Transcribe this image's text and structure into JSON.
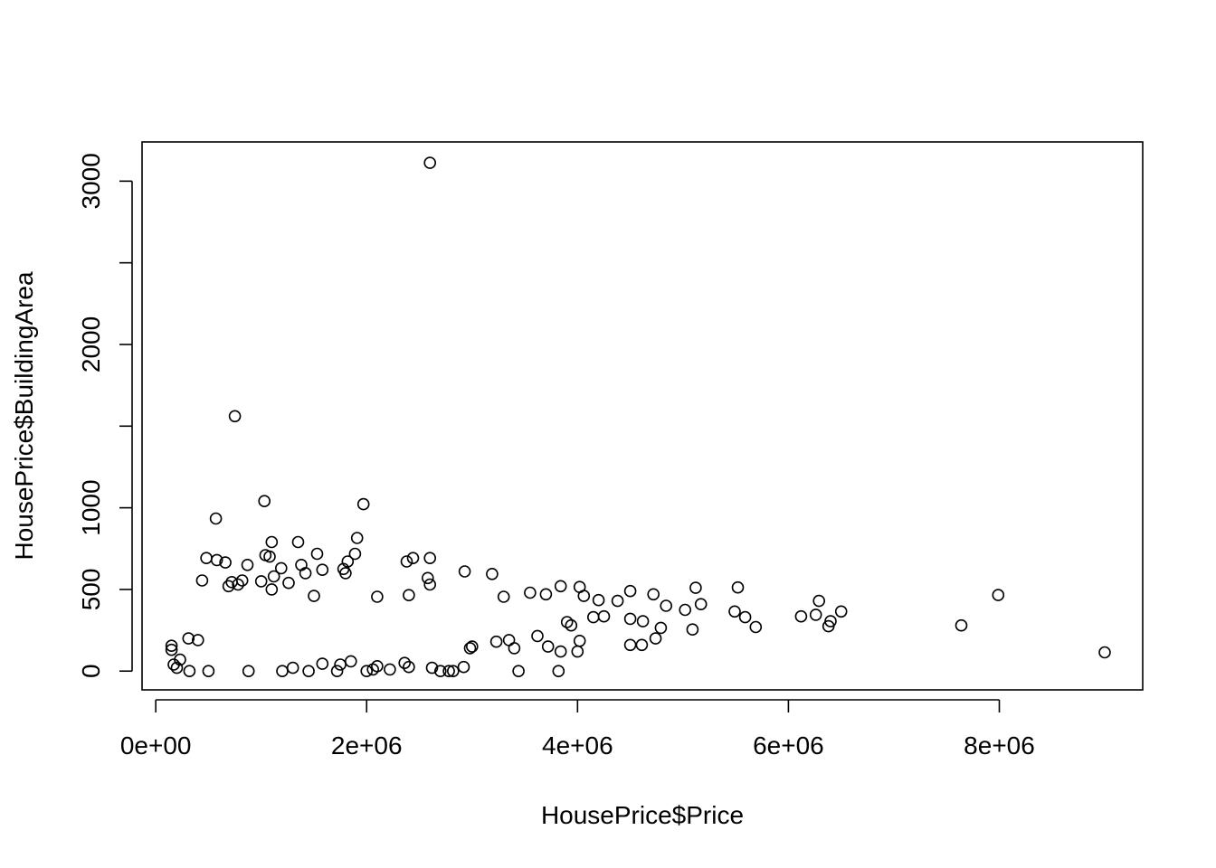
{
  "chart_data": {
    "type": "scatter",
    "title": "",
    "xlabel": "HousePrice$Price",
    "ylabel": "HousePrice$BuildingArea",
    "xlim": [
      -130000,
      9360000
    ],
    "ylim": [
      -115,
      3240
    ],
    "grid": false,
    "legend": "none",
    "x_ticks": [
      {
        "value": 0,
        "label": "0e+00"
      },
      {
        "value": 2000000,
        "label": "2e+06"
      },
      {
        "value": 4000000,
        "label": "4e+06"
      },
      {
        "value": 6000000,
        "label": "6e+06"
      },
      {
        "value": 8000000,
        "label": "8e+06"
      }
    ],
    "y_ticks": [
      {
        "value": 0,
        "label": "0"
      },
      {
        "value": 500,
        "label": "500"
      },
      {
        "value": 1000,
        "label": "1000"
      },
      {
        "value": 1500,
        "label": ""
      },
      {
        "value": 2000,
        "label": "2000"
      },
      {
        "value": 2500,
        "label": ""
      },
      {
        "value": 3000,
        "label": "3000"
      }
    ],
    "point_color": "#000000",
    "series": [
      {
        "points": [
          [
            2600000,
            3112
          ],
          [
            750000,
            1561
          ],
          [
            1030000,
            1041
          ],
          [
            1970000,
            1022
          ],
          [
            570000,
            934
          ],
          [
            1910000,
            815
          ],
          [
            1100000,
            790
          ],
          [
            1350000,
            790
          ],
          [
            1530000,
            718
          ],
          [
            1890000,
            718
          ],
          [
            1040000,
            710
          ],
          [
            1080000,
            701
          ],
          [
            480000,
            692
          ],
          [
            2440000,
            692
          ],
          [
            2600000,
            692
          ],
          [
            580000,
            680
          ],
          [
            2380000,
            671
          ],
          [
            660000,
            665
          ],
          [
            1820000,
            671
          ],
          [
            1380000,
            650
          ],
          [
            870000,
            650
          ],
          [
            1190000,
            630
          ],
          [
            1580000,
            620
          ],
          [
            1780000,
            625
          ],
          [
            2930000,
            610
          ],
          [
            3190000,
            595
          ],
          [
            1420000,
            600
          ],
          [
            1800000,
            600
          ],
          [
            2580000,
            570
          ],
          [
            1120000,
            580
          ],
          [
            440000,
            555
          ],
          [
            720000,
            545
          ],
          [
            820000,
            555
          ],
          [
            1000000,
            550
          ],
          [
            1260000,
            540
          ],
          [
            690000,
            520
          ],
          [
            780000,
            530
          ],
          [
            2600000,
            530
          ],
          [
            3840000,
            520
          ],
          [
            4020000,
            515
          ],
          [
            5120000,
            510
          ],
          [
            5520000,
            512
          ],
          [
            3550000,
            480
          ],
          [
            3700000,
            470
          ],
          [
            4500000,
            490
          ],
          [
            4720000,
            470
          ],
          [
            7990000,
            466
          ],
          [
            6290000,
            430
          ],
          [
            1100000,
            500
          ],
          [
            1500000,
            460
          ],
          [
            2100000,
            455
          ],
          [
            2400000,
            465
          ],
          [
            3300000,
            455
          ],
          [
            4060000,
            460
          ],
          [
            4200000,
            435
          ],
          [
            4380000,
            430
          ],
          [
            4840000,
            400
          ],
          [
            5170000,
            410
          ],
          [
            6500000,
            365
          ],
          [
            6120000,
            335
          ],
          [
            5020000,
            375
          ],
          [
            5490000,
            365
          ],
          [
            5590000,
            330
          ],
          [
            4250000,
            335
          ],
          [
            4150000,
            330
          ],
          [
            4500000,
            320
          ],
          [
            4620000,
            305
          ],
          [
            6260000,
            345
          ],
          [
            7640000,
            280
          ],
          [
            5690000,
            270
          ],
          [
            6380000,
            275
          ],
          [
            6400000,
            305
          ],
          [
            4790000,
            265
          ],
          [
            5090000,
            255
          ],
          [
            3900000,
            300
          ],
          [
            3940000,
            280
          ],
          [
            4740000,
            200
          ],
          [
            4500000,
            160
          ],
          [
            4610000,
            160
          ],
          [
            4020000,
            185
          ],
          [
            3720000,
            150
          ],
          [
            3620000,
            215
          ],
          [
            3230000,
            180
          ],
          [
            3000000,
            150
          ],
          [
            2980000,
            140
          ],
          [
            3350000,
            190
          ],
          [
            3400000,
            140
          ],
          [
            3840000,
            120
          ],
          [
            4000000,
            120
          ],
          [
            9000000,
            115
          ],
          [
            3440000,
            0
          ],
          [
            3820000,
            0
          ],
          [
            2700000,
            0
          ],
          [
            2780000,
            0
          ],
          [
            2820000,
            0
          ],
          [
            2620000,
            20
          ],
          [
            2920000,
            25
          ],
          [
            2400000,
            25
          ],
          [
            2100000,
            30
          ],
          [
            2000000,
            0
          ],
          [
            1720000,
            0
          ],
          [
            1450000,
            0
          ],
          [
            1200000,
            0
          ],
          [
            2060000,
            10
          ],
          [
            1750000,
            40
          ],
          [
            1300000,
            20
          ],
          [
            1580000,
            45
          ],
          [
            2360000,
            50
          ],
          [
            2220000,
            10
          ],
          [
            1850000,
            60
          ],
          [
            150000,
            155
          ],
          [
            150000,
            130
          ],
          [
            170000,
            40
          ],
          [
            230000,
            70
          ],
          [
            310000,
            200
          ],
          [
            400000,
            190
          ],
          [
            320000,
            0
          ],
          [
            500000,
            0
          ],
          [
            880000,
            0
          ],
          [
            200000,
            20
          ]
        ]
      }
    ]
  }
}
